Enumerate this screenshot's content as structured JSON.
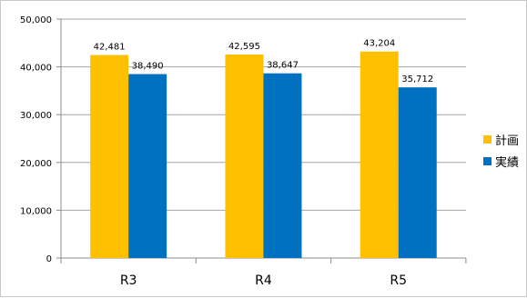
{
  "chart_data": {
    "type": "bar",
    "categories": [
      "R3",
      "R4",
      "R5"
    ],
    "series": [
      {
        "name": "計画",
        "values": [
          42481,
          42595,
          43204
        ],
        "labels": [
          "42,481",
          "42,595",
          "43,204"
        ],
        "color": "#FFC000"
      },
      {
        "name": "実績",
        "values": [
          38490,
          38647,
          35712
        ],
        "labels": [
          "38,490",
          "38,647",
          "35,712"
        ],
        "color": "#0070C0"
      }
    ],
    "ylim": [
      0,
      50000
    ],
    "yticks": [
      0,
      10000,
      20000,
      30000,
      40000,
      50000
    ],
    "ytick_labels": [
      "0",
      "10,000",
      "20,000",
      "30,000",
      "40,000",
      "50,000"
    ],
    "grid": true,
    "legend": "right"
  }
}
